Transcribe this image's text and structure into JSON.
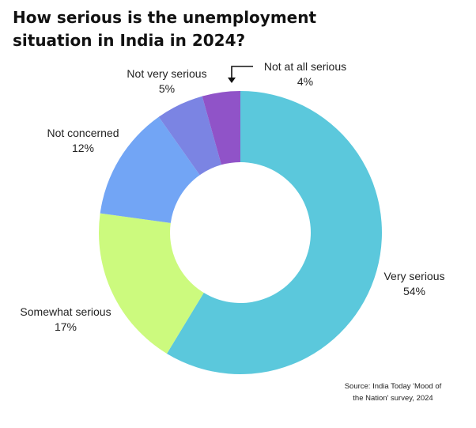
{
  "title": {
    "line1": "How serious is the unemployment",
    "line2": "situation in India in 2024?"
  },
  "source": {
    "line1": "Source: India Today 'Mood of",
    "line2": "the Nation' survey, 2024"
  },
  "chart_data": {
    "type": "pie",
    "donut": true,
    "title": "How serious is the unemployment situation in India in 2024?",
    "categories": [
      "Very serious",
      "Somewhat serious",
      "Not concerned",
      "Not very serious",
      "Not at all serious"
    ],
    "values": [
      54,
      17,
      12,
      5,
      4
    ],
    "value_labels": [
      "54%",
      "17%",
      "12%",
      "5%",
      "4%"
    ],
    "colors": [
      "#5bc8dc",
      "#ccfa7e",
      "#72a5f5",
      "#7b84e3",
      "#9053c8"
    ],
    "start": "12 o'clock",
    "direction": "clockwise"
  }
}
